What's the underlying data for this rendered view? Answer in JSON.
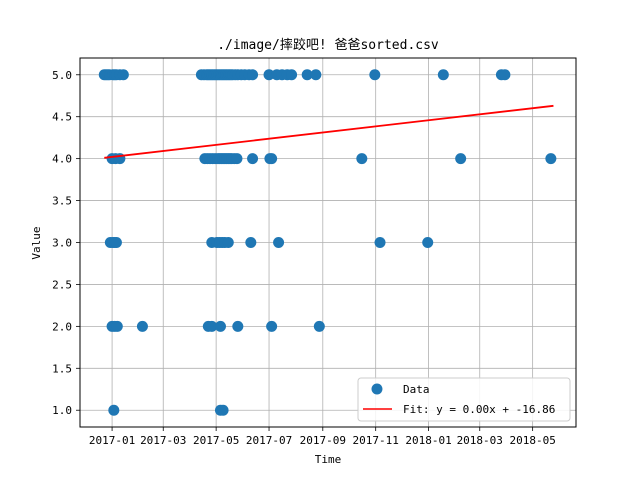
{
  "chart_data": {
    "type": "scatter",
    "title": "./image/摔跤吧! 爸爸sorted.csv",
    "xlabel": "Time",
    "ylabel": "Value",
    "x_axis_type": "date",
    "xlim": [
      "2016-11-25",
      "2018-06-20"
    ],
    "ylim": [
      0.8,
      5.2
    ],
    "x_ticks": [
      "2017-01-01",
      "2017-03-01",
      "2017-05-01",
      "2017-07-01",
      "2017-09-01",
      "2017-11-01",
      "2018-01-01",
      "2018-03-01",
      "2018-05-01"
    ],
    "x_tick_labels": [
      "2017-01",
      "2017-03",
      "2017-05",
      "2017-07",
      "2017-09",
      "2017-11",
      "2018-01",
      "2018-03",
      "2018-05"
    ],
    "y_ticks": [
      1.0,
      1.5,
      2.0,
      2.5,
      3.0,
      3.5,
      4.0,
      4.5,
      5.0
    ],
    "y_tick_labels": [
      "1.0",
      "1.5",
      "2.0",
      "2.5",
      "3.0",
      "3.5",
      "4.0",
      "4.5",
      "5.0"
    ],
    "grid": true,
    "legend": "lower-right",
    "series": [
      {
        "name": "Data",
        "kind": "scatter",
        "color": "#1f77b4",
        "points": [
          [
            "2016-12-23",
            5.0
          ],
          [
            "2016-12-25",
            5.0
          ],
          [
            "2016-12-27",
            5.0
          ],
          [
            "2016-12-29",
            5.0
          ],
          [
            "2017-01-02",
            5.0
          ],
          [
            "2017-01-04",
            5.0
          ],
          [
            "2017-01-06",
            5.0
          ],
          [
            "2017-01-10",
            5.0
          ],
          [
            "2017-01-14",
            5.0
          ],
          [
            "2017-04-14",
            5.0
          ],
          [
            "2017-04-17",
            5.0
          ],
          [
            "2017-04-20",
            5.0
          ],
          [
            "2017-04-22",
            5.0
          ],
          [
            "2017-04-24",
            5.0
          ],
          [
            "2017-04-26",
            5.0
          ],
          [
            "2017-04-28",
            5.0
          ],
          [
            "2017-04-30",
            5.0
          ],
          [
            "2017-05-02",
            5.0
          ],
          [
            "2017-05-04",
            5.0
          ],
          [
            "2017-05-06",
            5.0
          ],
          [
            "2017-05-08",
            5.0
          ],
          [
            "2017-05-10",
            5.0
          ],
          [
            "2017-05-12",
            5.0
          ],
          [
            "2017-05-14",
            5.0
          ],
          [
            "2017-05-16",
            5.0
          ],
          [
            "2017-05-18",
            5.0
          ],
          [
            "2017-05-20",
            5.0
          ],
          [
            "2017-05-23",
            5.0
          ],
          [
            "2017-05-26",
            5.0
          ],
          [
            "2017-05-30",
            5.0
          ],
          [
            "2017-06-03",
            5.0
          ],
          [
            "2017-06-08",
            5.0
          ],
          [
            "2017-06-12",
            5.0
          ],
          [
            "2017-07-01",
            5.0
          ],
          [
            "2017-07-10",
            5.0
          ],
          [
            "2017-07-16",
            5.0
          ],
          [
            "2017-07-22",
            5.0
          ],
          [
            "2017-07-27",
            5.0
          ],
          [
            "2017-08-14",
            5.0
          ],
          [
            "2017-08-24",
            5.0
          ],
          [
            "2017-10-31",
            5.0
          ],
          [
            "2018-01-18",
            5.0
          ],
          [
            "2018-03-26",
            5.0
          ],
          [
            "2018-03-30",
            5.0
          ],
          [
            "2017-01-01",
            4.0
          ],
          [
            "2017-01-05",
            4.0
          ],
          [
            "2017-01-10",
            4.0
          ],
          [
            "2017-04-18",
            4.0
          ],
          [
            "2017-04-21",
            4.0
          ],
          [
            "2017-04-24",
            4.0
          ],
          [
            "2017-04-27",
            4.0
          ],
          [
            "2017-04-30",
            4.0
          ],
          [
            "2017-05-03",
            4.0
          ],
          [
            "2017-05-05",
            4.0
          ],
          [
            "2017-05-07",
            4.0
          ],
          [
            "2017-05-09",
            4.0
          ],
          [
            "2017-05-11",
            4.0
          ],
          [
            "2017-05-13",
            4.0
          ],
          [
            "2017-05-15",
            4.0
          ],
          [
            "2017-05-17",
            4.0
          ],
          [
            "2017-05-19",
            4.0
          ],
          [
            "2017-05-22",
            4.0
          ],
          [
            "2017-05-25",
            4.0
          ],
          [
            "2017-06-12",
            4.0
          ],
          [
            "2017-07-02",
            4.0
          ],
          [
            "2017-07-04",
            4.0
          ],
          [
            "2017-10-16",
            4.0
          ],
          [
            "2018-02-07",
            4.0
          ],
          [
            "2018-05-22",
            4.0
          ],
          [
            "2016-12-30",
            3.0
          ],
          [
            "2017-01-02",
            3.0
          ],
          [
            "2017-01-04",
            3.0
          ],
          [
            "2017-01-06",
            3.0
          ],
          [
            "2017-04-26",
            3.0
          ],
          [
            "2017-05-02",
            3.0
          ],
          [
            "2017-05-05",
            3.0
          ],
          [
            "2017-05-08",
            3.0
          ],
          [
            "2017-05-11",
            3.0
          ],
          [
            "2017-05-15",
            3.0
          ],
          [
            "2017-06-10",
            3.0
          ],
          [
            "2017-07-12",
            3.0
          ],
          [
            "2017-11-06",
            3.0
          ],
          [
            "2017-12-31",
            3.0
          ],
          [
            "2017-01-01",
            2.0
          ],
          [
            "2017-01-04",
            2.0
          ],
          [
            "2017-01-07",
            2.0
          ],
          [
            "2017-02-05",
            2.0
          ],
          [
            "2017-04-22",
            2.0
          ],
          [
            "2017-04-26",
            2.0
          ],
          [
            "2017-05-06",
            2.0
          ],
          [
            "2017-05-26",
            2.0
          ],
          [
            "2017-07-04",
            2.0
          ],
          [
            "2017-08-28",
            2.0
          ],
          [
            "2017-01-03",
            1.0
          ],
          [
            "2017-05-06",
            1.0
          ],
          [
            "2017-05-09",
            1.0
          ]
        ]
      },
      {
        "name": "Fit: y = 0.00x + -16.86",
        "kind": "line",
        "color": "#ff0000",
        "points": [
          [
            "2016-12-23",
            4.01
          ],
          [
            "2018-05-25",
            4.63
          ]
        ]
      }
    ]
  }
}
